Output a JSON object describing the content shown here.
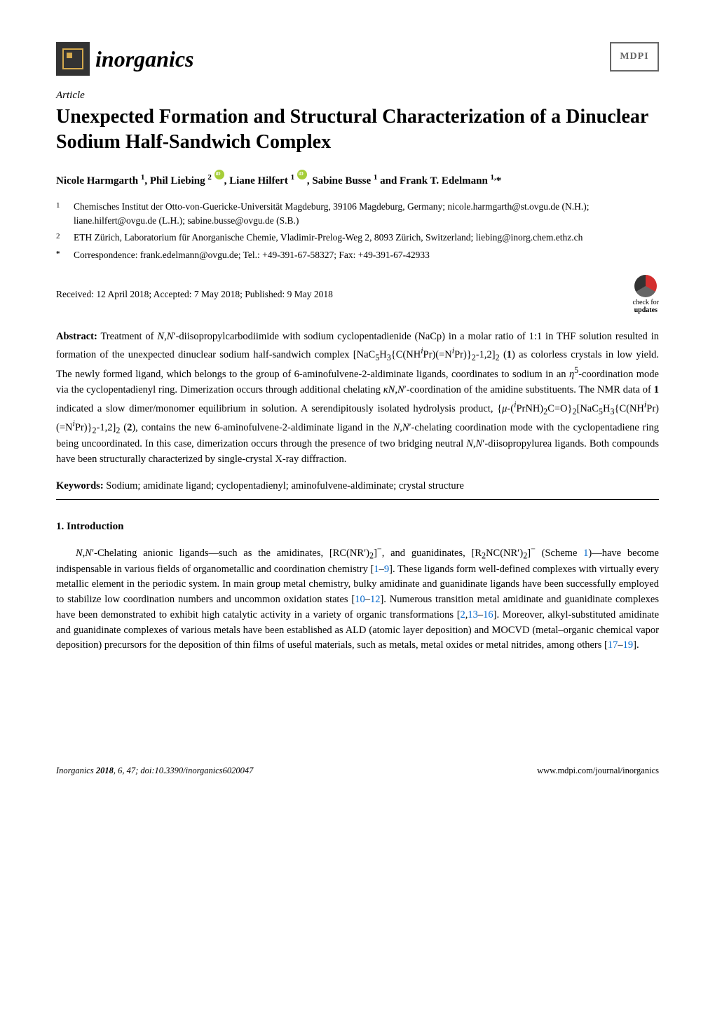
{
  "journal": {
    "name": "inorganics",
    "publisher": "MDPI"
  },
  "article": {
    "type": "Article",
    "title": "Unexpected Formation and Structural Characterization of a Dinuclear Sodium Half-Sandwich Complex",
    "authors_html": "Nicole Harmgarth <sup>1</sup>, Phil Liebing <sup>2</sup> <span class='orcid-icon'></span>, Liane Hilfert <sup>1</sup> <span class='orcid-icon'></span>, Sabine Busse <sup>1</sup> and Frank T. Edelmann <sup>1,</sup>*",
    "affiliations": [
      {
        "num": "1",
        "text": "Chemisches Institut der Otto-von-Guericke-Universität Magdeburg, 39106 Magdeburg, Germany; nicole.harmgarth@st.ovgu.de (N.H.); liane.hilfert@ovgu.de (L.H.); sabine.busse@ovgu.de (S.B.)"
      },
      {
        "num": "2",
        "text": "ETH Zürich, Laboratorium für Anorganische Chemie, Vladimir-Prelog-Weg 2, 8093 Zürich, Switzerland; liebing@inorg.chem.ethz.ch"
      },
      {
        "num": "*",
        "text": "Correspondence: frank.edelmann@ovgu.de; Tel.: +49-391-67-58327; Fax: +49-391-67-42933"
      }
    ],
    "dates": "Received: 12 April 2018; Accepted: 7 May 2018; Published: 9 May 2018",
    "updates_label1": "check for",
    "updates_label2": "updates",
    "abstract_label": "Abstract:",
    "abstract_html": "Treatment of <i>N</i>,<i>N</i>′-diisopropylcarbodiimide with sodium cyclopentadienide (NaCp) in a molar ratio of 1:1 in THF solution resulted in formation of the unexpected dinuclear sodium half-sandwich complex [NaC<sub>5</sub>H<sub>3</sub>{C(NH<sup><i>i</i></sup>Pr)(=N<sup><i>i</i></sup>Pr)}<sub>2</sub>-1,2]<sub>2</sub> (<b>1</b>) as colorless crystals in low yield. The newly formed ligand, which belongs to the group of 6-aminofulvene-2-aldiminate ligands, coordinates to sodium in an <i>η</i><sup>5</sup>-coordination mode via the cyclopentadienyl ring. Dimerization occurs through additional chelating <i>κN</i>,<i>N</i>′-coordination of the amidine substituents. The NMR data of <b>1</b> indicated a slow dimer/monomer equilibrium in solution. A serendipitously isolated hydrolysis product, {<i>μ</i>-(<sup><i>i</i></sup>PrNH)<sub>2</sub>C=O}<sub>2</sub>[NaC<sub>5</sub>H<sub>3</sub>{C(NH<sup><i>i</i></sup>Pr)(=N<sup><i>i</i></sup>Pr)}<sub>2</sub>-1,2]<sub>2</sub> (<b>2</b>), contains the new 6-aminofulvene-2-aldiminate ligand in the <i>N</i>,<i>N</i>′-chelating coordination mode with the cyclopentadiene ring being uncoordinated. In this case, dimerization occurs through the presence of two bridging neutral <i>N</i>,<i>N</i>′-diisopropylurea ligands. Both compounds have been structurally characterized by single-crystal X-ray diffraction.",
    "keywords_label": "Keywords:",
    "keywords": "Sodium; amidinate ligand; cyclopentadienyl; aminofulvene-aldiminate; crystal structure"
  },
  "section": {
    "heading": "1. Introduction",
    "body_html": "<i>N</i>,<i>N</i>′-Chelating anionic ligands—such as the amidinates, [RC(NR′)<sub>2</sub>]<sup>−</sup>, and guanidinates, [R<sub>2</sub>NC(NR′)<sub>2</sub>]<sup>−</sup> (Scheme <span class='ref-link'>1</span>)—have become indispensable in various fields of organometallic and coordination chemistry [<span class='ref-link'>1</span>–<span class='ref-link'>9</span>]. These ligands form well-defined complexes with virtually every metallic element in the periodic system. In main group metal chemistry, bulky amidinate and guanidinate ligands have been successfully employed to stabilize low coordination numbers and uncommon oxidation states [<span class='ref-link'>10</span>–<span class='ref-link'>12</span>]. Numerous transition metal amidinate and guanidinate complexes have been demonstrated to exhibit high catalytic activity in a variety of organic transformations [<span class='ref-link'>2</span>,<span class='ref-link'>13</span>–<span class='ref-link'>16</span>]. Moreover, alkyl-substituted amidinate and guanidinate complexes of various metals have been established as ALD (atomic layer deposition) and MOCVD (metal–organic chemical vapor deposition) precursors for the deposition of thin films of useful materials, such as metals, metal oxides or metal nitrides, among others [<span class='ref-link'>17</span>–<span class='ref-link'>19</span>]."
  },
  "footer": {
    "left": "Inorganics <b>2018</b>, 6, 47; doi:10.3390/inorganics6020047",
    "right": "www.mdpi.com/journal/inorganics"
  },
  "colors": {
    "background": "#ffffff",
    "text": "#000000",
    "link": "#0066cc",
    "orcid": "#a6ce39",
    "journal_icon_bg": "#333333",
    "journal_icon_accent": "#d4a94e"
  },
  "typography": {
    "body_font": "Palatino Linotype",
    "title_size": 28,
    "body_size": 14.5,
    "author_size": 15,
    "affil_size": 13.5,
    "journal_name_size": 32
  }
}
